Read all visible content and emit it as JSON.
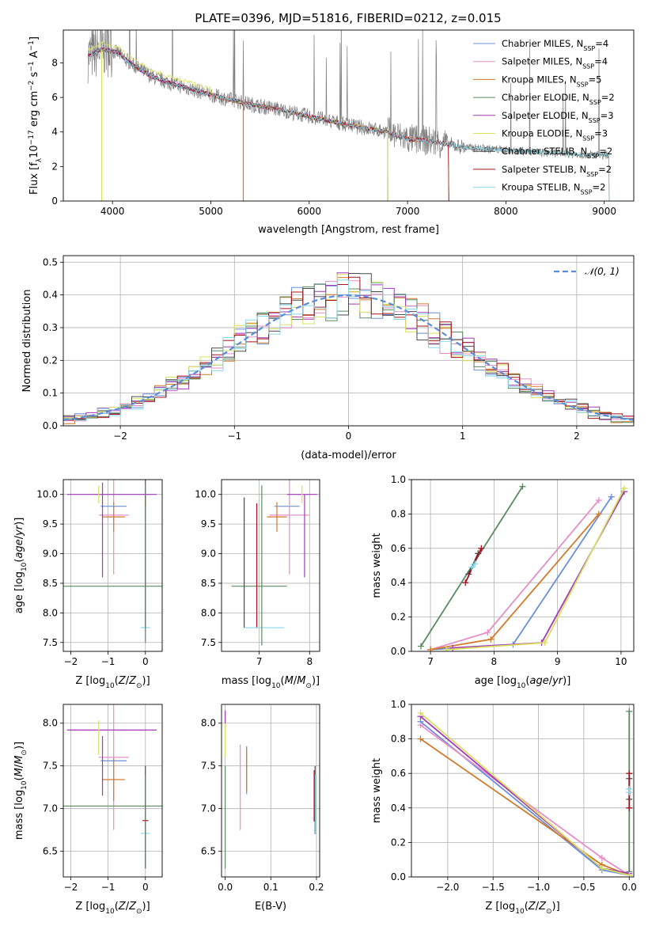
{
  "figure_title": "PLATE=0396, MJD=51816, FIBERID=0212, z=0.015",
  "series_styles": [
    {
      "name": "Chabrier MILES",
      "nssp": "4",
      "color": "#6a8fd8"
    },
    {
      "name": "Salpeter MILES",
      "nssp": "4",
      "color": "#e68ec8"
    },
    {
      "name": "Kroupa MILES",
      "nssp": "5",
      "color": "#d27a2a"
    },
    {
      "name": "Chabrier ELODIE",
      "nssp": "2",
      "color": "#5a8a62"
    },
    {
      "name": "Salpeter ELODIE",
      "nssp": "3",
      "color": "#a23ab8"
    },
    {
      "name": "Kroupa ELODIE",
      "nssp": "3",
      "color": "#d8e060"
    },
    {
      "name": "Chabrier STELIB",
      "nssp": "2",
      "color": "#4a4a4a"
    },
    {
      "name": "Salpeter STELIB",
      "nssp": "2",
      "color": "#a8141e"
    },
    {
      "name": "Kroupa STELIB",
      "nssp": "2",
      "color": "#88d8e8"
    }
  ],
  "chart_data": [
    {
      "id": "spectrum",
      "type": "line",
      "xlabel": "wavelength [Angstrom, rest frame]",
      "ylabel": "Flux [f",
      "xlim": [
        3500,
        9300
      ],
      "ylim": [
        0,
        9.9
      ],
      "xticks": [
        4000,
        5000,
        6000,
        7000,
        8000,
        9000
      ],
      "yticks": [
        0,
        2,
        4,
        6,
        8
      ],
      "legend_position": "upper-right",
      "continuum_knots": {
        "x": [
          3750,
          3900,
          4050,
          4200,
          4400,
          4600,
          4850,
          5100,
          5400,
          5700,
          6000,
          6400,
          6800,
          7000,
          7200,
          7400,
          7600,
          8000,
          8400,
          8800,
          9050
        ],
        "y": [
          8.4,
          8.8,
          8.6,
          7.9,
          7.2,
          6.8,
          6.4,
          6.0,
          5.6,
          5.3,
          4.9,
          4.4,
          4.0,
          3.6,
          3.5,
          3.3,
          3.1,
          2.95,
          2.8,
          2.7,
          2.65
        ]
      },
      "data_wavelength_range": [
        3750,
        9050
      ],
      "model_ranges": [
        [
          3750,
          7420
        ],
        [
          3750,
          7420
        ],
        [
          3750,
          7420
        ],
        [
          3750,
          6800
        ],
        [
          3750,
          6800
        ],
        [
          3750,
          6800
        ],
        [
          3750,
          9050
        ],
        [
          3750,
          7420
        ],
        [
          3750,
          9050
        ]
      ]
    },
    {
      "id": "residuals",
      "type": "line",
      "xlabel": "(data-model)/error",
      "ylabel": "Normed distribution",
      "xlim": [
        -2.5,
        2.5
      ],
      "ylim": [
        0,
        0.52
      ],
      "xticks": [
        -2,
        -1,
        0,
        1,
        2
      ],
      "yticks": [
        0.0,
        0.1,
        0.2,
        0.3,
        0.4,
        0.5
      ],
      "grid": true,
      "legend_position": "upper-right",
      "gaussian_label": "𝒩(0, 1)",
      "bin_width": 0.1
    },
    {
      "id": "age-vs-Z",
      "type": "scatter",
      "xlabel": "Z [log",
      "ylabel": "age  [log",
      "xlim": [
        -2.2,
        0.45
      ],
      "ylim": [
        7.35,
        10.25
      ],
      "xticks": [
        -2,
        -1,
        0
      ],
      "yticks": [
        7.5,
        8.0,
        8.5,
        9.0,
        9.5,
        10.0
      ],
      "grid": true,
      "points": [
        {
          "s": 0,
          "x": -0.85,
          "y": 9.8,
          "xe": 0.35,
          "ye": 0.0
        },
        {
          "s": 1,
          "x": -0.85,
          "y": 9.65,
          "xe": 0.4,
          "ye": 1.0
        },
        {
          "s": 2,
          "x": -0.85,
          "y": 9.62,
          "xe": 0.3,
          "ye": 0.25
        },
        {
          "s": 3,
          "x": -0.9,
          "y": 8.45,
          "xe": 1.4,
          "ye": 0.0
        },
        {
          "s": 4,
          "x": -0.9,
          "y": 10.0,
          "xe": 1.2,
          "ye": 0.0
        },
        {
          "s": 4,
          "x": -1.15,
          "y": 9.4,
          "xe": 0.0,
          "ye": 0.8
        },
        {
          "s": 5,
          "x": -1.25,
          "y": 10.0,
          "xe": 0.0,
          "ye": 0.15
        },
        {
          "s": 6,
          "x": 0.0,
          "y": 9.0,
          "xe": 0.0,
          "ye": 1.25
        },
        {
          "s": 7,
          "x": 0.0,
          "y": 9.9,
          "xe": 0.0,
          "ye": 0.1
        },
        {
          "s": 8,
          "x": 0.0,
          "y": 7.75,
          "xe": 0.12,
          "ye": 0.0
        },
        {
          "s": 3,
          "x": 0.0,
          "y": 8.85,
          "xe": 0.0,
          "ye": 1.35
        }
      ]
    },
    {
      "id": "age-vs-mass",
      "type": "scatter",
      "xlabel": "mass [log",
      "ylabel": "",
      "xlim": [
        6.25,
        8.2
      ],
      "ylim": [
        7.35,
        10.25
      ],
      "xticks": [
        7,
        8
      ],
      "yticks": [
        7.5,
        8.0,
        8.5,
        9.0,
        9.5,
        10.0
      ],
      "grid": true,
      "points": [
        {
          "s": 0,
          "x": 7.55,
          "y": 9.8,
          "xe": 0.25,
          "ye": 0.0
        },
        {
          "s": 1,
          "x": 7.6,
          "y": 9.65,
          "xe": 0.4,
          "ye": 1.0
        },
        {
          "s": 2,
          "x": 7.35,
          "y": 9.62,
          "xe": 0.2,
          "ye": 0.25
        },
        {
          "s": 3,
          "x": 7.0,
          "y": 8.45,
          "xe": 0.55,
          "ye": 0.0
        },
        {
          "s": 4,
          "x": 7.85,
          "y": 10.0,
          "xe": 0.3,
          "ye": 0.0
        },
        {
          "s": 4,
          "x": 7.9,
          "y": 9.3,
          "xe": 0.0,
          "ye": 0.7
        },
        {
          "s": 5,
          "x": 7.85,
          "y": 10.0,
          "xe": 0.0,
          "ye": 0.15
        },
        {
          "s": 6,
          "x": 6.7,
          "y": 8.85,
          "xe": 0.0,
          "ye": 1.1
        },
        {
          "s": 7,
          "x": 6.95,
          "y": 8.8,
          "xe": 0.0,
          "ye": 1.05
        },
        {
          "s": 8,
          "x": 7.1,
          "y": 7.75,
          "xe": 0.4,
          "ye": 0.0
        },
        {
          "s": 3,
          "x": 7.05,
          "y": 8.8,
          "xe": 0.0,
          "ye": 1.35
        }
      ]
    },
    {
      "id": "weight-vs-age",
      "type": "line",
      "xlabel": "age  [log",
      "ylabel": "mass weight",
      "xlim": [
        6.7,
        10.2
      ],
      "ylim": [
        0,
        1.0
      ],
      "xticks": [
        7,
        8,
        9,
        10
      ],
      "yticks": [
        0.0,
        0.2,
        0.4,
        0.6,
        0.8,
        1.0
      ],
      "grid": true,
      "series": [
        {
          "s": 0,
          "x": [
            7.0,
            8.3,
            9.85
          ],
          "y": [
            0.01,
            0.04,
            0.9
          ]
        },
        {
          "s": 1,
          "x": [
            7.0,
            7.9,
            9.65
          ],
          "y": [
            0.01,
            0.11,
            0.88
          ]
        },
        {
          "s": 2,
          "x": [
            7.0,
            7.95,
            9.65
          ],
          "y": [
            0.01,
            0.07,
            0.8
          ]
        },
        {
          "s": 3,
          "x": [
            6.85,
            8.45
          ],
          "y": [
            0.03,
            0.96
          ]
        },
        {
          "s": 4,
          "x": [
            7.35,
            8.75,
            10.05
          ],
          "y": [
            0.02,
            0.05,
            0.93
          ]
        },
        {
          "s": 5,
          "x": [
            7.25,
            8.8,
            10.05
          ],
          "y": [
            0.01,
            0.05,
            0.95
          ]
        },
        {
          "s": 6,
          "x": [
            7.6,
            7.75
          ],
          "y": [
            0.45,
            0.57
          ]
        },
        {
          "s": 7,
          "x": [
            7.55,
            7.8
          ],
          "y": [
            0.4,
            0.6
          ]
        },
        {
          "s": 8,
          "x": [
            7.65,
            7.7
          ],
          "y": [
            0.49,
            0.51
          ]
        }
      ]
    },
    {
      "id": "mass-vs-Z",
      "type": "scatter",
      "xlabel": "Z [log",
      "ylabel": "mass [log",
      "xlim": [
        -2.2,
        0.45
      ],
      "ylim": [
        6.2,
        8.22
      ],
      "xticks": [
        -2,
        -1,
        0
      ],
      "yticks": [
        6.5,
        7.0,
        7.5,
        8.0
      ],
      "grid": true,
      "points": [
        {
          "s": 0,
          "x": -0.85,
          "y": 7.56,
          "xe": 0.35,
          "ye": 0.0
        },
        {
          "s": 1,
          "x": -0.85,
          "y": 7.6,
          "xe": 0.4,
          "ye": 0.85
        },
        {
          "s": 2,
          "x": -0.85,
          "y": 7.34,
          "xe": 0.3,
          "ye": 0.25
        },
        {
          "s": 3,
          "x": -0.9,
          "y": 7.03,
          "xe": 1.4,
          "ye": 0.0
        },
        {
          "s": 4,
          "x": -0.9,
          "y": 7.92,
          "xe": 1.2,
          "ye": 0.0
        },
        {
          "s": 4,
          "x": -1.15,
          "y": 7.5,
          "xe": 0.0,
          "ye": 0.35
        },
        {
          "s": 5,
          "x": -1.25,
          "y": 7.83,
          "xe": 0.0,
          "ye": 0.2
        },
        {
          "s": 6,
          "x": 0.0,
          "y": 6.9,
          "xe": 0.0,
          "ye": 0.6
        },
        {
          "s": 7,
          "x": 0.0,
          "y": 6.86,
          "xe": 0.08,
          "ye": 0.0
        },
        {
          "s": 8,
          "x": 0.0,
          "y": 6.71,
          "xe": 0.12,
          "ye": 0.0
        },
        {
          "s": 3,
          "x": 0.0,
          "y": 6.85,
          "xe": 0.0,
          "ye": 0.55
        }
      ]
    },
    {
      "id": "mass-vs-EBV",
      "type": "scatter",
      "xlabel": "E(B-V)",
      "ylabel": "",
      "xlim": [
        -0.008,
        0.207
      ],
      "ylim": [
        6.2,
        8.22
      ],
      "xticks": [
        0.0,
        0.1,
        0.2
      ],
      "yticks": [
        6.5,
        7.0,
        7.5,
        8.0
      ],
      "grid": true,
      "points": [
        {
          "s": 0,
          "x": 0.047,
          "y": 7.45,
          "xe": 0.0,
          "ye": 0.28
        },
        {
          "s": 1,
          "x": 0.033,
          "y": 7.25,
          "xe": 0.0,
          "ye": 0.5
        },
        {
          "s": 2,
          "x": 0.047,
          "y": 7.45,
          "xe": 0.0,
          "ye": 0.25
        },
        {
          "s": 3,
          "x": 0.0,
          "y": 6.9,
          "xe": 0.0,
          "ye": 0.6
        },
        {
          "s": 4,
          "x": 0.0,
          "y": 8.05,
          "xe": 0.0,
          "ye": 0.1
        },
        {
          "s": 5,
          "x": 0.0,
          "y": 7.8,
          "xe": 0.0,
          "ye": 0.2
        },
        {
          "s": 6,
          "x": 0.197,
          "y": 7.1,
          "xe": 0.0,
          "ye": 0.4
        },
        {
          "s": 7,
          "x": 0.195,
          "y": 7.15,
          "xe": 0.0,
          "ye": 0.3
        },
        {
          "s": 8,
          "x": 0.198,
          "y": 7.05,
          "xe": 0.0,
          "ye": 0.35
        }
      ]
    },
    {
      "id": "weight-vs-Z",
      "type": "line",
      "xlabel": "Z [log",
      "ylabel": "mass weight",
      "xlim": [
        -2.4,
        0.05
      ],
      "ylim": [
        0,
        1.0
      ],
      "xticks": [
        -2.0,
        -1.5,
        -1.0,
        -0.5,
        0.0
      ],
      "yticks": [
        0.0,
        0.2,
        0.4,
        0.6,
        0.8,
        1.0
      ],
      "grid": true,
      "series": [
        {
          "s": 0,
          "x": [
            -2.3,
            -0.3,
            0.0
          ],
          "y": [
            0.9,
            0.04,
            0.01
          ]
        },
        {
          "s": 1,
          "x": [
            -2.3,
            -0.3,
            0.0
          ],
          "y": [
            0.88,
            0.11,
            0.01
          ]
        },
        {
          "s": 2,
          "x": [
            -2.3,
            -0.3,
            0.0
          ],
          "y": [
            0.8,
            0.07,
            0.01
          ]
        },
        {
          "s": 3,
          "x": [
            0.0,
            0.0
          ],
          "y": [
            0.03,
            0.96
          ]
        },
        {
          "s": 4,
          "x": [
            -2.3,
            -0.3,
            0.0
          ],
          "y": [
            0.93,
            0.05,
            0.02
          ]
        },
        {
          "s": 5,
          "x": [
            -2.3,
            -0.3,
            0.0
          ],
          "y": [
            0.95,
            0.05,
            0.01
          ]
        },
        {
          "s": 6,
          "x": [
            0.0,
            0.0
          ],
          "y": [
            0.45,
            0.57
          ]
        },
        {
          "s": 7,
          "x": [
            0.0,
            0.0
          ],
          "y": [
            0.4,
            0.6
          ]
        },
        {
          "s": 8,
          "x": [
            0.0,
            0.0
          ],
          "y": [
            0.49,
            0.51
          ]
        }
      ]
    }
  ]
}
